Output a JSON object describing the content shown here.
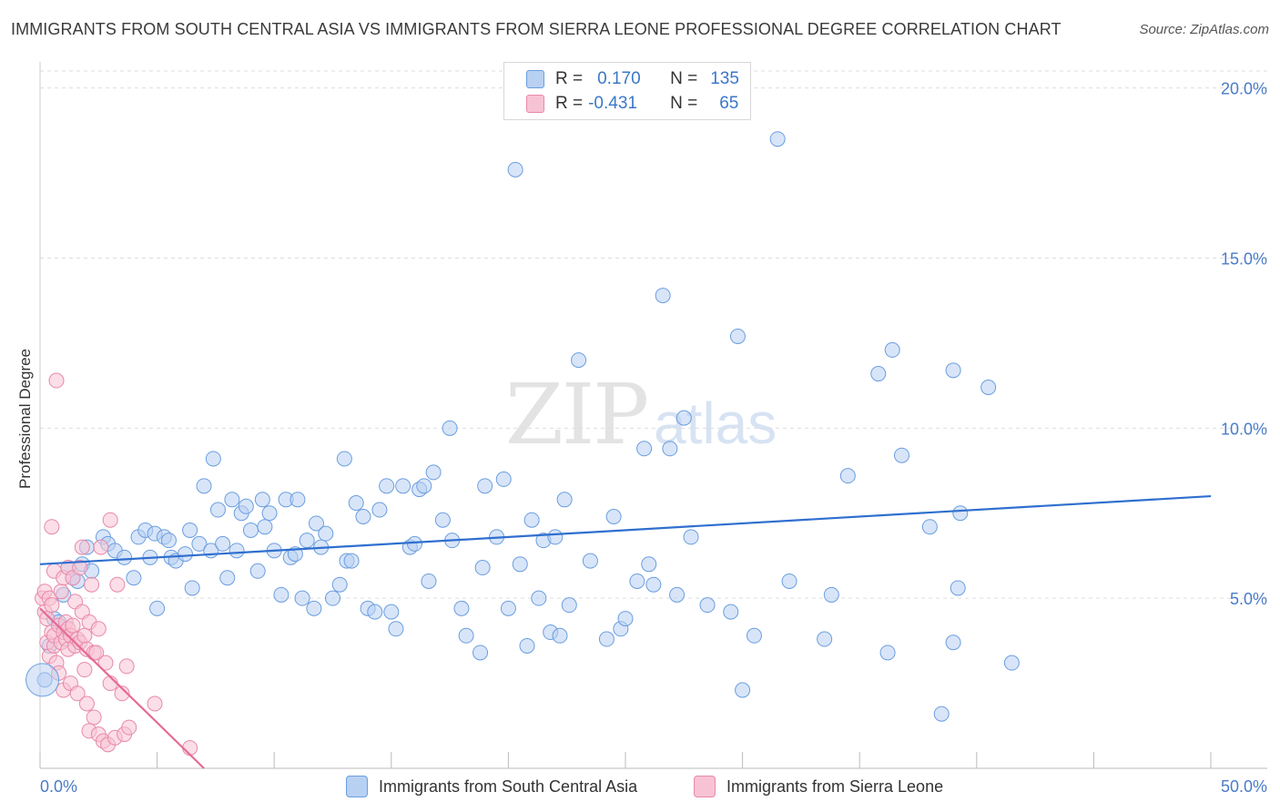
{
  "title": "IMMIGRANTS FROM SOUTH CENTRAL ASIA VS IMMIGRANTS FROM SIERRA LEONE PROFESSIONAL DEGREE CORRELATION CHART",
  "source": "Source: ZipAtlas.com",
  "watermark_zip": "ZIP",
  "watermark_atlas": "atlas",
  "legend": {
    "blue": {
      "r_label": "R =",
      "r_value": "0.170",
      "n_label": "N =",
      "n_value": "135"
    },
    "pink": {
      "r_label": "R =",
      "r_value": "-0.431",
      "n_label": "N =",
      "n_value": "65"
    }
  },
  "colors": {
    "blue": "#6b9ee0",
    "blue_fill": "#b8d0f2",
    "blue_line": "#2f6fcf",
    "pink": "#e889a9",
    "pink_fill": "#f7c3d4",
    "pink_line": "#e56a96"
  },
  "chart_data": {
    "type": "scatter",
    "title": "IMMIGRANTS FROM SOUTH CENTRAL ASIA VS IMMIGRANTS FROM SIERRA LEONE PROFESSIONAL DEGREE CORRELATION CHART",
    "xlabel": "",
    "ylabel": "Professional Degree",
    "xlim": [
      0,
      50
    ],
    "ylim": [
      0,
      20.5
    ],
    "x_tick_labels": [
      "0.0%",
      "50.0%"
    ],
    "y_ticks": [
      5,
      10,
      15,
      20
    ],
    "y_tick_labels": [
      "5.0%",
      "10.0%",
      "15.0%",
      "20.0%"
    ],
    "grid": true,
    "legend_position": "top-center",
    "series": [
      {
        "name": "Immigrants from South Central Asia",
        "color": "#6b9ee0",
        "trend": [
          [
            0,
            6.0
          ],
          [
            50,
            8.0
          ]
        ],
        "points": [
          [
            0.2,
            2.6
          ],
          [
            0.4,
            3.6
          ],
          [
            0.6,
            4.4
          ],
          [
            0.8,
            4.3
          ],
          [
            1.0,
            5.1
          ],
          [
            1.2,
            5.9
          ],
          [
            1.4,
            5.6
          ],
          [
            1.6,
            5.5
          ],
          [
            1.8,
            6.0
          ],
          [
            2.0,
            6.5
          ],
          [
            2.2,
            5.8
          ],
          [
            2.7,
            6.8
          ],
          [
            2.9,
            6.6
          ],
          [
            3.2,
            6.4
          ],
          [
            3.6,
            6.2
          ],
          [
            4.0,
            5.6
          ],
          [
            4.2,
            6.8
          ],
          [
            4.5,
            7.0
          ],
          [
            4.7,
            6.2
          ],
          [
            4.9,
            6.9
          ],
          [
            5.0,
            4.7
          ],
          [
            5.3,
            6.8
          ],
          [
            5.5,
            6.7
          ],
          [
            5.6,
            6.2
          ],
          [
            5.8,
            6.1
          ],
          [
            6.2,
            6.3
          ],
          [
            6.4,
            7.0
          ],
          [
            6.5,
            5.3
          ],
          [
            6.8,
            6.6
          ],
          [
            7.0,
            8.3
          ],
          [
            7.3,
            6.4
          ],
          [
            7.4,
            9.1
          ],
          [
            7.6,
            7.6
          ],
          [
            7.8,
            6.6
          ],
          [
            8.0,
            5.6
          ],
          [
            8.2,
            7.9
          ],
          [
            8.4,
            6.4
          ],
          [
            8.6,
            7.5
          ],
          [
            8.8,
            7.7
          ],
          [
            9.0,
            7.0
          ],
          [
            9.3,
            5.8
          ],
          [
            9.5,
            7.9
          ],
          [
            9.6,
            7.1
          ],
          [
            9.8,
            7.5
          ],
          [
            10.0,
            6.4
          ],
          [
            10.3,
            5.1
          ],
          [
            10.5,
            7.9
          ],
          [
            10.7,
            6.2
          ],
          [
            10.9,
            6.3
          ],
          [
            11.0,
            7.9
          ],
          [
            11.2,
            5.0
          ],
          [
            11.4,
            6.7
          ],
          [
            11.7,
            4.7
          ],
          [
            11.8,
            7.2
          ],
          [
            12.0,
            6.5
          ],
          [
            12.2,
            6.9
          ],
          [
            12.5,
            5.0
          ],
          [
            12.8,
            5.4
          ],
          [
            13.0,
            9.1
          ],
          [
            13.1,
            6.1
          ],
          [
            13.3,
            6.1
          ],
          [
            13.5,
            7.8
          ],
          [
            13.8,
            7.4
          ],
          [
            14.0,
            4.7
          ],
          [
            14.3,
            4.6
          ],
          [
            14.5,
            7.6
          ],
          [
            14.8,
            8.3
          ],
          [
            15.0,
            4.6
          ],
          [
            15.2,
            4.1
          ],
          [
            15.5,
            8.3
          ],
          [
            15.8,
            6.5
          ],
          [
            16.0,
            6.6
          ],
          [
            16.2,
            8.2
          ],
          [
            16.4,
            8.3
          ],
          [
            16.6,
            5.5
          ],
          [
            16.8,
            8.7
          ],
          [
            17.2,
            7.3
          ],
          [
            17.5,
            10.0
          ],
          [
            17.6,
            6.7
          ],
          [
            18.0,
            4.7
          ],
          [
            18.2,
            3.9
          ],
          [
            18.8,
            3.4
          ],
          [
            18.9,
            5.9
          ],
          [
            19.0,
            8.3
          ],
          [
            19.5,
            6.8
          ],
          [
            19.8,
            8.5
          ],
          [
            20.0,
            4.7
          ],
          [
            20.3,
            17.6
          ],
          [
            20.5,
            6.0
          ],
          [
            20.8,
            3.6
          ],
          [
            21.0,
            7.3
          ],
          [
            21.3,
            5.0
          ],
          [
            21.5,
            6.7
          ],
          [
            21.8,
            4.0
          ],
          [
            22.0,
            6.8
          ],
          [
            22.2,
            3.9
          ],
          [
            22.4,
            7.9
          ],
          [
            22.6,
            4.8
          ],
          [
            23.0,
            12.0
          ],
          [
            23.5,
            6.1
          ],
          [
            24.2,
            3.8
          ],
          [
            24.5,
            7.4
          ],
          [
            24.8,
            4.1
          ],
          [
            25.0,
            4.4
          ],
          [
            25.5,
            5.5
          ],
          [
            25.8,
            9.4
          ],
          [
            26.0,
            6.0
          ],
          [
            26.2,
            5.4
          ],
          [
            26.6,
            13.9
          ],
          [
            26.9,
            9.4
          ],
          [
            27.2,
            5.1
          ],
          [
            27.5,
            10.3
          ],
          [
            27.8,
            6.8
          ],
          [
            30.0,
            2.3
          ],
          [
            28.5,
            4.8
          ],
          [
            29.5,
            4.6
          ],
          [
            29.8,
            12.7
          ],
          [
            30.5,
            3.9
          ],
          [
            31.5,
            18.5
          ],
          [
            32.0,
            5.5
          ],
          [
            33.5,
            3.8
          ],
          [
            33.8,
            5.1
          ],
          [
            34.5,
            8.6
          ],
          [
            35.8,
            11.6
          ],
          [
            36.2,
            3.4
          ],
          [
            36.4,
            12.3
          ],
          [
            36.8,
            9.2
          ],
          [
            38.0,
            7.1
          ],
          [
            38.5,
            1.6
          ],
          [
            39.0,
            11.7
          ],
          [
            39.2,
            5.3
          ],
          [
            39.3,
            7.5
          ],
          [
            40.5,
            11.2
          ],
          [
            39.0,
            3.7
          ],
          [
            41.5,
            3.1
          ]
        ]
      },
      {
        "name": "Immigrants from Sierra Leone",
        "color": "#e889a9",
        "trend": [
          [
            0,
            4.7
          ],
          [
            7,
            0.0
          ]
        ],
        "points": [
          [
            0.1,
            5.0
          ],
          [
            0.2,
            4.6
          ],
          [
            0.2,
            5.2
          ],
          [
            0.3,
            4.4
          ],
          [
            0.3,
            3.7
          ],
          [
            0.4,
            3.3
          ],
          [
            0.4,
            5.0
          ],
          [
            0.5,
            4.8
          ],
          [
            0.5,
            7.1
          ],
          [
            0.5,
            4.0
          ],
          [
            0.6,
            3.6
          ],
          [
            0.6,
            5.8
          ],
          [
            0.6,
            3.9
          ],
          [
            0.7,
            3.1
          ],
          [
            0.7,
            11.4
          ],
          [
            0.8,
            2.8
          ],
          [
            0.8,
            4.2
          ],
          [
            0.9,
            5.2
          ],
          [
            0.9,
            3.7
          ],
          [
            1.0,
            4.0
          ],
          [
            1.0,
            2.3
          ],
          [
            1.0,
            5.6
          ],
          [
            1.1,
            3.8
          ],
          [
            1.1,
            4.3
          ],
          [
            1.2,
            4.1
          ],
          [
            1.2,
            3.5
          ],
          [
            1.2,
            5.9
          ],
          [
            1.3,
            2.5
          ],
          [
            1.3,
            3.9
          ],
          [
            1.4,
            4.2
          ],
          [
            1.4,
            5.6
          ],
          [
            1.5,
            3.6
          ],
          [
            1.5,
            4.9
          ],
          [
            1.6,
            3.8
          ],
          [
            1.6,
            2.2
          ],
          [
            1.7,
            5.9
          ],
          [
            1.7,
            3.7
          ],
          [
            1.8,
            4.6
          ],
          [
            1.8,
            6.5
          ],
          [
            1.9,
            2.9
          ],
          [
            1.9,
            3.9
          ],
          [
            2.0,
            3.5
          ],
          [
            2.0,
            1.9
          ],
          [
            2.1,
            4.3
          ],
          [
            2.1,
            1.1
          ],
          [
            2.2,
            5.4
          ],
          [
            2.3,
            3.4
          ],
          [
            2.3,
            1.5
          ],
          [
            2.4,
            3.4
          ],
          [
            2.5,
            4.1
          ],
          [
            2.5,
            1.0
          ],
          [
            2.6,
            6.5
          ],
          [
            2.7,
            0.8
          ],
          [
            2.8,
            3.1
          ],
          [
            2.9,
            0.7
          ],
          [
            3.0,
            7.3
          ],
          [
            3.0,
            2.5
          ],
          [
            3.2,
            0.9
          ],
          [
            3.3,
            5.4
          ],
          [
            3.5,
            2.2
          ],
          [
            3.6,
            1.0
          ],
          [
            3.7,
            3.0
          ],
          [
            3.8,
            1.2
          ],
          [
            4.9,
            1.9
          ],
          [
            6.4,
            0.6
          ]
        ]
      }
    ]
  },
  "bottom_legend": {
    "blue_label": "Immigrants from South Central Asia",
    "pink_label": "Immigrants from Sierra Leone"
  }
}
